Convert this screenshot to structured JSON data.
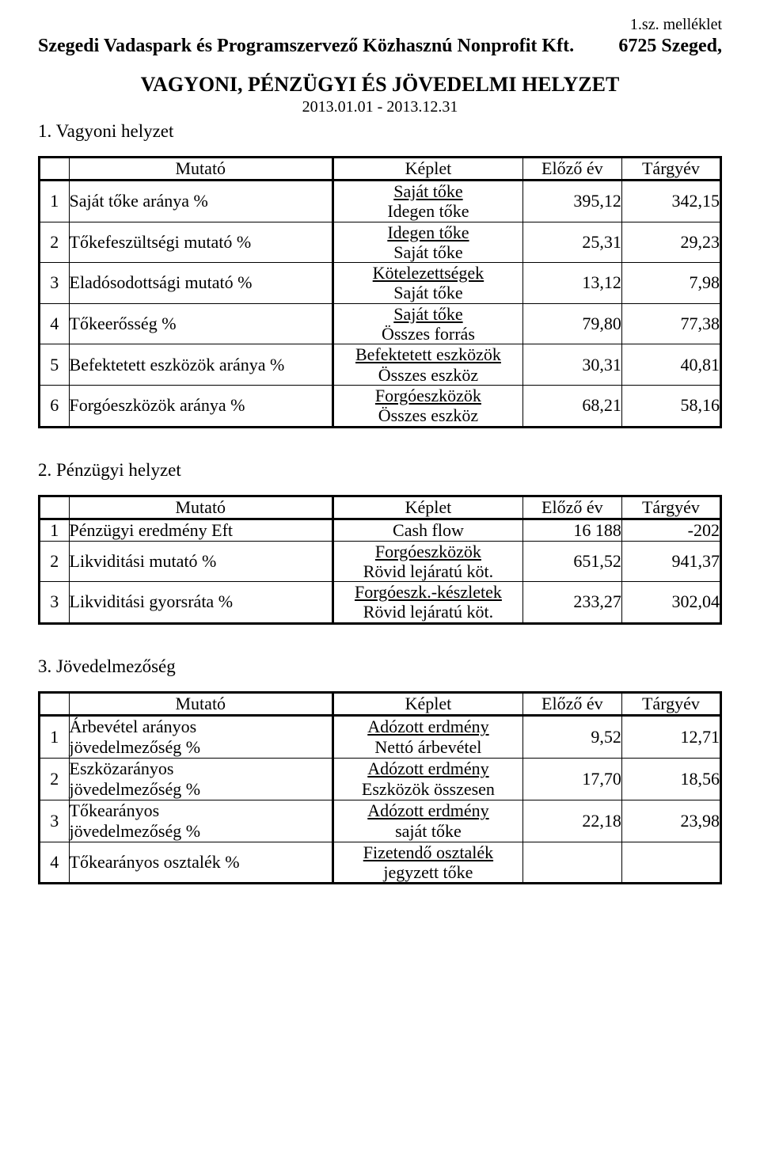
{
  "topnote": "1.sz. melléklet",
  "header_left": "Szegedi Vadaspark és Programszervező Közhasznú Nonprofit Kft.",
  "header_right": "6725 Szeged,",
  "title": "VAGYONI, PÉNZÜGYI  ÉS  JÖVEDELMI  HELYZET",
  "date_range": "2013.01.01 - 2013.12.31",
  "columns": {
    "mutato": "Mutató",
    "keplet": "Képlet",
    "prev": "Előző év",
    "curr": "Tárgyév"
  },
  "section1": {
    "heading": "1. Vagyoni helyzet",
    "rows": [
      {
        "n": "1",
        "mutato": "Saját tőke aránya  %",
        "num": "Saját tőke",
        "den": "Idegen tőke",
        "prev": "395,12",
        "curr": "342,15"
      },
      {
        "n": "2",
        "mutato": "Tőkefeszültségi mutató  %",
        "num": "Idegen tőke",
        "den": "Saját tőke",
        "prev": "25,31",
        "curr": "29,23"
      },
      {
        "n": "3",
        "mutato": "Eladósodottsági mutató  %",
        "num": "Kötelezettségek",
        "den": "Saját tőke",
        "prev": "13,12",
        "curr": "7,98"
      },
      {
        "n": "4",
        "mutato": "Tőkeerősség  %",
        "num": "Saját tőke",
        "den": "Összes forrás",
        "prev": "79,80",
        "curr": "77,38"
      },
      {
        "n": "5",
        "mutato": "Befektetett eszközök aránya  %",
        "num": "Befektetett eszközök",
        "den": "Összes eszköz",
        "prev": "30,31",
        "curr": "40,81"
      },
      {
        "n": "6",
        "mutato": "Forgóeszközök aránya  %",
        "num": "Forgóeszközök",
        "den": "Összes eszköz",
        "prev": "68,21",
        "curr": "58,16"
      }
    ]
  },
  "section2": {
    "heading": "2. Pénzügyi helyzet",
    "rows": [
      {
        "n": "1",
        "mutato": "Pénzügyi eredmény Eft",
        "single": "Cash flow",
        "prev": "16 188",
        "curr": "-202"
      },
      {
        "n": "2",
        "mutato": "Likviditási mutató  %",
        "num": "Forgóeszközök",
        "den": "Rövid lejáratú köt.",
        "prev": "651,52",
        "curr": "941,37"
      },
      {
        "n": "3",
        "mutato": "Likviditási gyorsráta  %",
        "num": "Forgóeszk.-készletek",
        "den": "Rövid lejáratú köt.",
        "prev": "233,27",
        "curr": "302,04"
      }
    ]
  },
  "section3": {
    "heading": "3. Jövedelmezőség",
    "rows": [
      {
        "n": "1",
        "mutato_top": "Árbevétel arányos",
        "mutato_bot": "jövedelmezőség  %",
        "num": "Adózott erdmény",
        "den": "Nettó árbevétel",
        "prev": "9,52",
        "curr": "12,71"
      },
      {
        "n": "2",
        "mutato_top": "Eszközarányos",
        "mutato_bot": "jövedelmezőség  %",
        "num": "Adózott erdmény",
        "den": "Eszközök összesen",
        "prev": "17,70",
        "curr": "18,56"
      },
      {
        "n": "3",
        "mutato_top": "Tőkearányos",
        "mutato_bot": "jövedelmezőség  %",
        "num": "Adózott erdmény",
        "den": "saját tőke",
        "prev": "22,18",
        "curr": "23,98"
      },
      {
        "n": "4",
        "mutato": "Tőkearányos osztalék  %",
        "num": "Fizetendő osztalék",
        "den": "jegyzett tőke",
        "prev": "",
        "curr": ""
      }
    ]
  }
}
